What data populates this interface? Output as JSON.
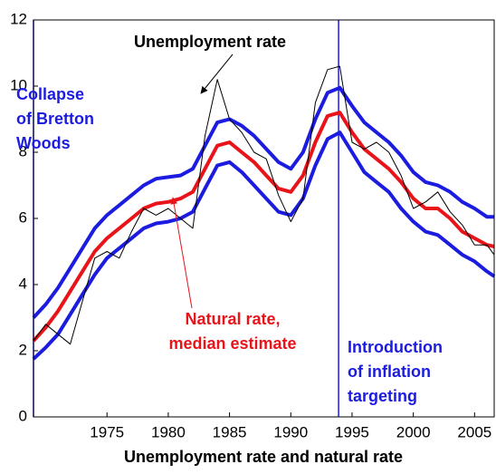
{
  "chart_data": {
    "type": "line",
    "x_title": "Unemployment rate and natural rate",
    "x": [
      1969,
      1970,
      1971,
      1972,
      1973,
      1974,
      1975,
      1976,
      1977,
      1978,
      1979,
      1980,
      1981,
      1982,
      1983,
      1984,
      1985,
      1986,
      1987,
      1988,
      1989,
      1990,
      1991,
      1992,
      1993,
      1994,
      1995,
      1996,
      1997,
      1998,
      1999,
      2000,
      2001,
      2002,
      2003,
      2004,
      2005,
      2006,
      2006.6
    ],
    "series": [
      {
        "color": "#1c1ce0",
        "width": 4,
        "values": [
          3.0,
          3.4,
          3.9,
          4.5,
          5.1,
          5.7,
          6.1,
          6.4,
          6.7,
          7.0,
          7.2,
          7.25,
          7.3,
          7.5,
          8.2,
          8.9,
          9.0,
          8.8,
          8.5,
          8.1,
          7.7,
          7.5,
          8.0,
          9.0,
          9.8,
          9.95,
          9.4,
          8.9,
          8.6,
          8.3,
          7.9,
          7.4,
          7.1,
          7.0,
          6.8,
          6.5,
          6.3,
          6.05,
          6.05
        ]
      },
      {
        "color": "#e8141a",
        "width": 4,
        "values": [
          2.3,
          2.7,
          3.2,
          3.8,
          4.4,
          5.0,
          5.4,
          5.7,
          6.0,
          6.3,
          6.45,
          6.5,
          6.6,
          6.8,
          7.5,
          8.2,
          8.3,
          8.0,
          7.7,
          7.3,
          6.9,
          6.8,
          7.3,
          8.3,
          9.1,
          9.2,
          8.6,
          8.1,
          7.8,
          7.5,
          7.1,
          6.6,
          6.3,
          6.3,
          6.0,
          5.6,
          5.4,
          5.2,
          5.15
        ]
      },
      {
        "color": "#1c1ce0",
        "width": 4,
        "values": [
          1.75,
          2.1,
          2.5,
          3.1,
          3.7,
          4.3,
          4.8,
          5.1,
          5.4,
          5.7,
          5.85,
          5.9,
          6.0,
          6.2,
          6.9,
          7.6,
          7.7,
          7.4,
          7.0,
          6.6,
          6.2,
          6.1,
          6.6,
          7.6,
          8.4,
          8.6,
          8.0,
          7.4,
          7.1,
          6.8,
          6.3,
          5.9,
          5.6,
          5.5,
          5.2,
          4.9,
          4.7,
          4.4,
          4.25
        ]
      },
      {
        "color": "#000000",
        "width": 1,
        "values": [
          2.3,
          2.8,
          2.5,
          2.2,
          3.5,
          4.8,
          5.0,
          4.8,
          5.6,
          6.3,
          6.1,
          6.3,
          6.0,
          5.7,
          8.5,
          10.2,
          9.0,
          8.6,
          8.0,
          7.8,
          6.7,
          5.9,
          6.6,
          9.5,
          10.5,
          10.6,
          8.3,
          8.1,
          8.3,
          8.0,
          7.3,
          6.3,
          6.5,
          6.8,
          6.2,
          5.8,
          5.2,
          5.2,
          4.9
        ]
      }
    ],
    "vertical_lines": {
      "color": "#1c1ce0",
      "values": [
        1969,
        1993.9
      ]
    },
    "annotations": [
      {
        "lines": [
          "Unemployment rate"
        ],
        "color": "#000000"
      },
      {
        "lines": [
          "Collapse",
          "of Bretton",
          "Woods"
        ],
        "color": "#1c1ce0"
      },
      {
        "lines": [
          "Natural rate,",
          "median estimate"
        ],
        "color": "#e8141a"
      },
      {
        "lines": [
          "Introduction",
          "of inflation",
          "targeting"
        ],
        "color": "#1c1ce0"
      }
    ],
    "xlim": [
      1969,
      2006.6
    ],
    "xticks": [
      1975,
      1980,
      1985,
      1990,
      1995,
      2000,
      2005
    ],
    "ylim": [
      0,
      12
    ],
    "yticks": [
      0,
      2,
      4,
      6,
      8,
      10,
      12
    ]
  }
}
